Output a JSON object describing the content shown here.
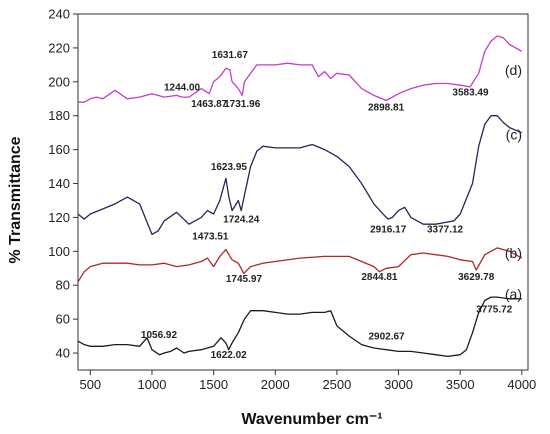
{
  "chart_data": {
    "type": "line",
    "xlabel": "Wavenumber cm⁻¹",
    "ylabel": "% Transmittance",
    "xlim": [
      400,
      4050
    ],
    "ylim": [
      30,
      240
    ],
    "x_ticks": [
      500,
      1000,
      1500,
      2000,
      2500,
      3000,
      3500,
      4000
    ],
    "y_ticks": [
      40,
      60,
      80,
      100,
      120,
      140,
      160,
      180,
      200,
      220,
      240
    ],
    "grid": false,
    "series": [
      {
        "name": "(a)",
        "color": "#1c1c1c",
        "x": [
          400,
          450,
          500,
          600,
          700,
          800,
          900,
          960,
          1000,
          1060,
          1100,
          1150,
          1200,
          1260,
          1300,
          1400,
          1500,
          1560,
          1600,
          1622,
          1650,
          1700,
          1750,
          1800,
          1900,
          2000,
          2100,
          2200,
          2300,
          2400,
          2450,
          2500,
          2600,
          2700,
          2800,
          2900,
          3000,
          3100,
          3200,
          3300,
          3400,
          3500,
          3550,
          3600,
          3650,
          3700,
          3750,
          3800,
          3900,
          4000
        ],
        "y": [
          47,
          45,
          44,
          44,
          45,
          45,
          44,
          49,
          42,
          39,
          40,
          41,
          43,
          40,
          41,
          42,
          44,
          49,
          46,
          42,
          46,
          52,
          60,
          65,
          65,
          64,
          63,
          63,
          64,
          64,
          65,
          56,
          50,
          45,
          43,
          42,
          41,
          41,
          40,
          39,
          38,
          39,
          42,
          52,
          64,
          71,
          73,
          73,
          72,
          72
        ]
      },
      {
        "name": "(b)",
        "color": "#b02a25",
        "x": [
          400,
          450,
          500,
          600,
          700,
          800,
          900,
          1000,
          1100,
          1200,
          1300,
          1400,
          1450,
          1500,
          1550,
          1600,
          1650,
          1700,
          1745,
          1800,
          1900,
          2000,
          2200,
          2400,
          2600,
          2700,
          2800,
          2845,
          2900,
          3000,
          3100,
          3200,
          3300,
          3400,
          3500,
          3600,
          3630,
          3700,
          3800,
          3900,
          4000
        ],
        "y": [
          82,
          88,
          91,
          93,
          93,
          93,
          92,
          92,
          93,
          91,
          92,
          94,
          96,
          91,
          97,
          101,
          95,
          93,
          87,
          91,
          93,
          94,
          96,
          97,
          97,
          94,
          91,
          88,
          90,
          91,
          98,
          99,
          98,
          97,
          95,
          94,
          89,
          98,
          102,
          100,
          96
        ]
      },
      {
        "name": "(c)",
        "color": "#23275a",
        "x": [
          400,
          450,
          500,
          600,
          700,
          800,
          900,
          1000,
          1050,
          1100,
          1200,
          1300,
          1400,
          1450,
          1500,
          1550,
          1600,
          1624,
          1650,
          1700,
          1724,
          1750,
          1800,
          1850,
          1900,
          2000,
          2100,
          2200,
          2300,
          2400,
          2500,
          2600,
          2700,
          2800,
          2900,
          2916,
          2950,
          3000,
          3050,
          3100,
          3200,
          3300,
          3377,
          3450,
          3500,
          3600,
          3650,
          3700,
          3750,
          3800,
          3850,
          3900,
          4000
        ],
        "y": [
          122,
          119,
          122,
          125,
          128,
          132,
          128,
          110,
          112,
          118,
          123,
          116,
          120,
          124,
          122,
          130,
          143,
          132,
          124,
          130,
          124,
          133,
          150,
          159,
          162,
          161,
          161,
          161,
          163,
          160,
          156,
          150,
          140,
          128,
          120,
          119,
          120,
          124,
          126,
          120,
          116,
          116,
          117,
          118,
          122,
          140,
          162,
          175,
          180,
          180,
          176,
          173,
          170
        ]
      },
      {
        "name": "(d)",
        "color": "#c23fc8",
        "x": [
          400,
          450,
          500,
          550,
          600,
          700,
          800,
          900,
          1000,
          1100,
          1200,
          1244,
          1300,
          1400,
          1464,
          1500,
          1550,
          1600,
          1632,
          1650,
          1700,
          1732,
          1750,
          1800,
          1850,
          1900,
          2000,
          2100,
          2200,
          2300,
          2350,
          2400,
          2450,
          2500,
          2600,
          2700,
          2800,
          2900,
          3000,
          3100,
          3200,
          3300,
          3400,
          3500,
          3580,
          3650,
          3700,
          3750,
          3800,
          3850,
          3900,
          4000
        ],
        "y": [
          188,
          188,
          190,
          191,
          190,
          195,
          190,
          191,
          193,
          191,
          192,
          191,
          191,
          196,
          193,
          200,
          203,
          208,
          207,
          200,
          196,
          192,
          200,
          205,
          210,
          210,
          210,
          211,
          210,
          210,
          203,
          206,
          202,
          205,
          204,
          196,
          192,
          189,
          193,
          196,
          198,
          199,
          199,
          198,
          197,
          205,
          218,
          224,
          227,
          226,
          222,
          218
        ]
      }
    ],
    "annotations": [
      {
        "text": "1056.92",
        "x": 1056.92,
        "y": 49
      },
      {
        "text": "1622.02",
        "x": 1622.02,
        "y": 37
      },
      {
        "text": "2902.67",
        "x": 2902.67,
        "y": 48
      },
      {
        "text": "3775.72",
        "x": 3775.72,
        "y": 64
      },
      {
        "text": "1473.51",
        "x": 1473.51,
        "y": 107
      },
      {
        "text": "1745.97",
        "x": 1745.97,
        "y": 82
      },
      {
        "text": "2844.81",
        "x": 2844.81,
        "y": 83
      },
      {
        "text": "3629.78",
        "x": 3629.78,
        "y": 83
      },
      {
        "text": "1623.95",
        "x": 1623.95,
        "y": 148
      },
      {
        "text": "1724.24",
        "x": 1724.24,
        "y": 117
      },
      {
        "text": "2916.17",
        "x": 2916.17,
        "y": 111
      },
      {
        "text": "3377.12",
        "x": 3377.12,
        "y": 111
      },
      {
        "text": "1244.00",
        "x": 1244.0,
        "y": 195
      },
      {
        "text": "1463.87",
        "x": 1463.87,
        "y": 185
      },
      {
        "text": "1631.67",
        "x": 1631.67,
        "y": 214
      },
      {
        "text": "1731.96",
        "x": 1731.96,
        "y": 185
      },
      {
        "text": "2898.81",
        "x": 2898.81,
        "y": 183
      },
      {
        "text": "3583.49",
        "x": 3583.49,
        "y": 192
      }
    ],
    "curve_labels": [
      {
        "text": "(a)",
        "y": 72
      },
      {
        "text": "(b)",
        "y": 96
      },
      {
        "text": "(c)",
        "y": 166
      },
      {
        "text": "(d)",
        "y": 204
      }
    ]
  }
}
